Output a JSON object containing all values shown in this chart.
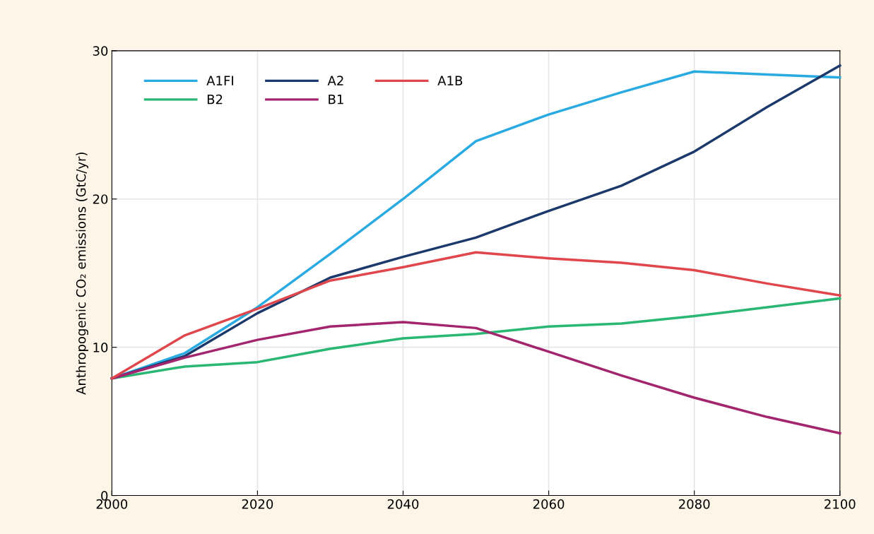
{
  "chart_data": {
    "type": "line",
    "ylabel": "Anthropogenic CO₂ emissions (GtC/yr)",
    "x": [
      2000,
      2010,
      2020,
      2030,
      2040,
      2050,
      2060,
      2070,
      2080,
      2090,
      2100
    ],
    "series": [
      {
        "name": "A1FI",
        "color": "#29aae1",
        "values": [
          7.9,
          9.6,
          12.7,
          16.3,
          20.0,
          23.9,
          25.7,
          27.2,
          28.6,
          28.4,
          28.2
        ]
      },
      {
        "name": "B2",
        "color": "#2ab673",
        "values": [
          7.9,
          8.7,
          9.0,
          9.9,
          10.6,
          10.9,
          11.4,
          11.6,
          12.1,
          12.7,
          13.3
        ]
      },
      {
        "name": "A2",
        "color": "#1b3a6b",
        "values": [
          7.9,
          9.4,
          12.3,
          14.7,
          16.1,
          17.4,
          19.2,
          20.9,
          23.2,
          26.2,
          29.0
        ]
      },
      {
        "name": "B1",
        "color": "#a3256e",
        "values": [
          7.9,
          9.3,
          10.5,
          11.4,
          11.7,
          11.3,
          9.7,
          8.1,
          6.6,
          5.3,
          4.2
        ]
      },
      {
        "name": "A1B",
        "color": "#e0474c",
        "values": [
          7.9,
          10.8,
          12.6,
          14.5,
          15.4,
          16.4,
          16.0,
          15.7,
          15.2,
          14.3,
          13.5
        ]
      }
    ],
    "xlim": [
      2000,
      2100
    ],
    "xticks": [
      2000,
      2020,
      2040,
      2060,
      2080,
      2100
    ],
    "ylim": [
      0,
      30
    ],
    "yticks": [
      0,
      10,
      20,
      30
    ],
    "grid": true,
    "legend": "top left",
    "marker": "none",
    "line_style": "solid"
  }
}
